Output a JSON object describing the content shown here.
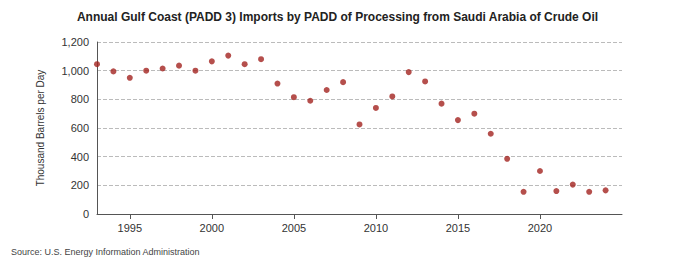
{
  "chart_data": {
    "type": "scatter",
    "title": "Annual Gulf Coast (PADD 3) Imports by PADD of Processing from Saudi Arabia of Crude Oil",
    "y_label": "Thousand Barrels per Day",
    "source": "Source: U.S. Energy Information Administration",
    "x": [
      1993,
      1994,
      1995,
      1996,
      1997,
      1998,
      1999,
      2000,
      2001,
      2002,
      2003,
      2004,
      2005,
      2006,
      2007,
      2008,
      2009,
      2010,
      2011,
      2012,
      2013,
      2014,
      2015,
      2016,
      2017,
      2018,
      2019,
      2020,
      2021,
      2022,
      2023,
      2024
    ],
    "values": [
      1045,
      995,
      950,
      1000,
      1015,
      1035,
      1000,
      1065,
      1105,
      1045,
      1080,
      910,
      815,
      790,
      865,
      920,
      625,
      740,
      820,
      990,
      925,
      770,
      655,
      700,
      560,
      385,
      155,
      300,
      160,
      205,
      155,
      165
    ],
    "color": "#a3231f",
    "marker": "circle",
    "xlim": [
      1993,
      2025
    ],
    "xticks": [
      1995,
      2000,
      2005,
      2010,
      2015,
      2020
    ],
    "ylim": [
      0,
      1200
    ],
    "yticks": [
      0,
      200,
      400,
      600,
      800,
      {
        "value": 1000,
        "label": "1,000"
      },
      {
        "value": 1200,
        "label": "1,200"
      }
    ],
    "grid": true
  }
}
